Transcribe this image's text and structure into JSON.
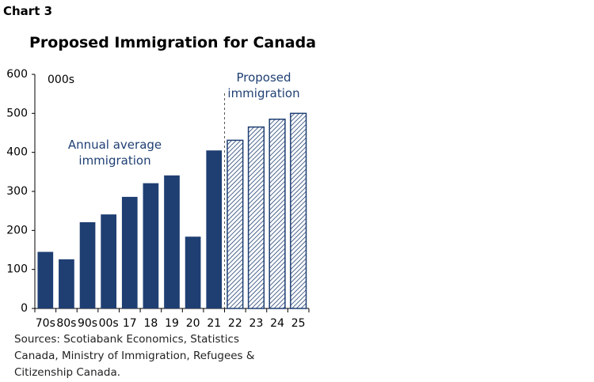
{
  "chart_data": {
    "type": "bar",
    "label": "Chart 3",
    "title": "Proposed Immigration for Canada",
    "ylabel": "000s",
    "categories": [
      "70s",
      "80s",
      "90s",
      "00s",
      "17",
      "18",
      "19",
      "20",
      "21",
      "22",
      "23",
      "24",
      "25"
    ],
    "series": [
      {
        "name": "Annual average immigration",
        "color": "#1f3f73",
        "hatched": false,
        "values": [
          145,
          126,
          221,
          241,
          286,
          321,
          341,
          184,
          405,
          null,
          null,
          null,
          null
        ]
      },
      {
        "name": "Proposed immigration",
        "color": "#1f3f73",
        "hatched": true,
        "values": [
          null,
          null,
          null,
          null,
          null,
          null,
          null,
          null,
          null,
          431,
          465,
          485,
          500
        ]
      }
    ],
    "ylim": [
      0,
      600
    ],
    "yticks": [
      0,
      100,
      200,
      300,
      400,
      500,
      600
    ],
    "source": "Sources: Scotiabank Economics, Statistics Canada, Ministry of Immigration, Refugees & Citizenship Canada."
  }
}
